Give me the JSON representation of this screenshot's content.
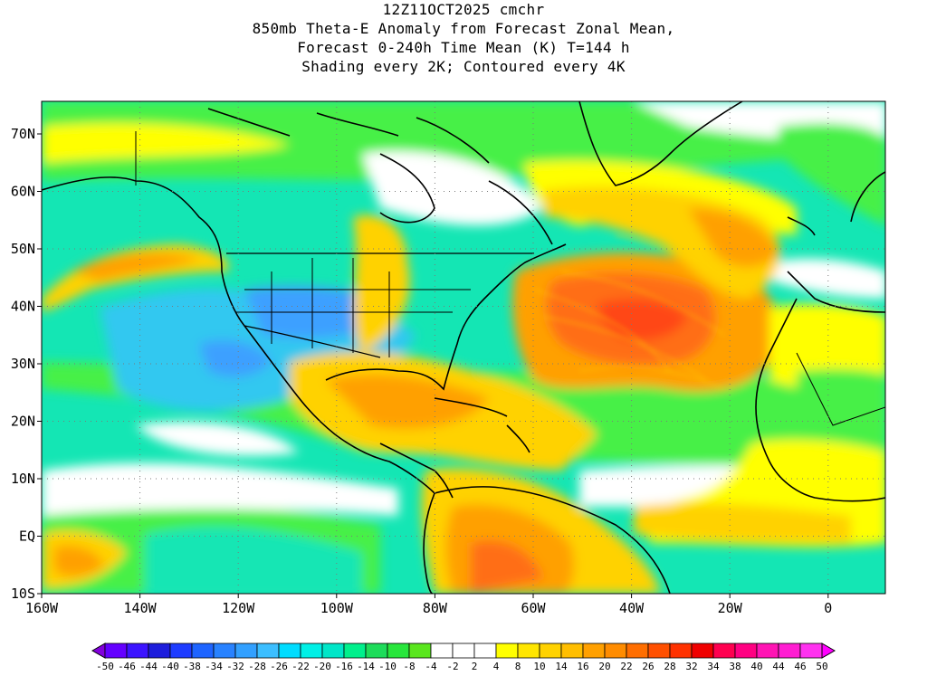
{
  "title": {
    "line1": "12Z11OCT2025 cmchr",
    "line2": "850mb Theta-E Anomaly from Forecast Zonal Mean,",
    "line3": "Forecast 0-240h Time Mean (K) T=144 h",
    "line4": "Shading every 2K; Contoured every 4K"
  },
  "axes": {
    "lat_ticks": [
      "70N",
      "60N",
      "50N",
      "40N",
      "30N",
      "20N",
      "10N",
      "EQ",
      "10S"
    ],
    "lon_ticks": [
      "160W",
      "140W",
      "120W",
      "100W",
      "80W",
      "60W",
      "40W",
      "20W",
      "0"
    ]
  },
  "colorbar": {
    "labels": [
      "-50",
      "-46",
      "-44",
      "-40",
      "-38",
      "-34",
      "-32",
      "-28",
      "-26",
      "-22",
      "-20",
      "-16",
      "-14",
      "-10",
      "-8",
      "-4",
      "-2",
      "2",
      "4",
      "8",
      "10",
      "14",
      "16",
      "20",
      "22",
      "26",
      "28",
      "32",
      "34",
      "38",
      "40",
      "44",
      "46",
      "50"
    ],
    "colors": [
      "#8200dc",
      "#6400ff",
      "#3c14ff",
      "#1e1edc",
      "#1e3cff",
      "#1e64ff",
      "#2882ff",
      "#32a0ff",
      "#3cbeff",
      "#00dcff",
      "#00f0e6",
      "#00e6c8",
      "#00f08c",
      "#1edc5a",
      "#28e63c",
      "#5ae61e",
      "#ffffff",
      "#ffffff",
      "#ffffff",
      "#ffff00",
      "#ffe600",
      "#ffd200",
      "#ffbe00",
      "#ffa000",
      "#ff8c00",
      "#ff6e00",
      "#ff5000",
      "#ff3200",
      "#f00000",
      "#ff0050",
      "#ff0082",
      "#ff14b4",
      "#ff1ed2",
      "#ff32f0",
      "#ff00ff"
    ]
  },
  "palette": {
    "white": "#ffffff",
    "green": "#3ce63c",
    "light_green": "#46f046",
    "teal": "#14e6b4",
    "cyan": "#32c8f0",
    "blue": "#3ca0ff",
    "yellow": "#ffff00",
    "gold": "#ffd200",
    "orange": "#ffa000",
    "dark_orange": "#ff6e14",
    "red_orange": "#ff4614",
    "coast": "#000000"
  }
}
